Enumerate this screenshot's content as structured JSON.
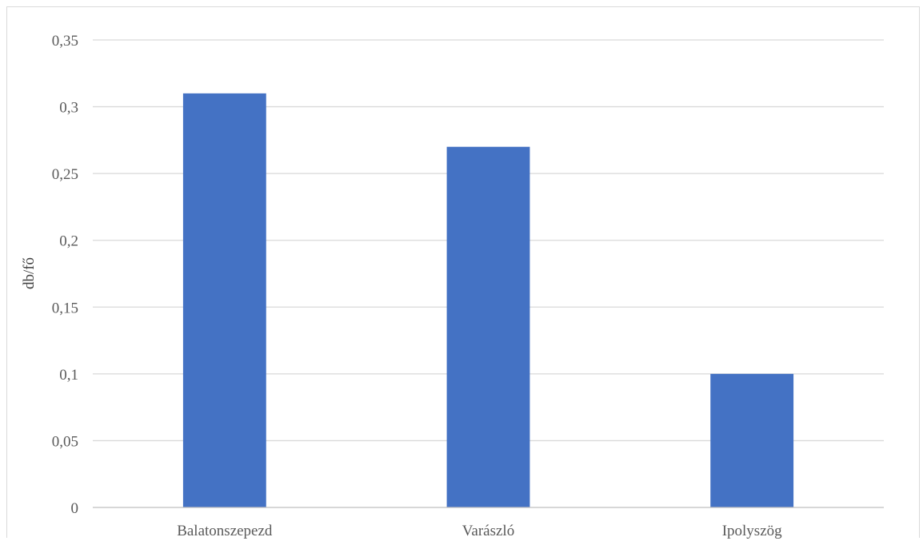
{
  "chart_data": {
    "type": "bar",
    "title": "",
    "xlabel": "",
    "ylabel": "db/fő",
    "categories": [
      "Balatonszepezd",
      "Varászló",
      "Ipolyszög"
    ],
    "values": [
      0.31,
      0.27,
      0.1
    ],
    "ylim": [
      0,
      0.35
    ],
    "yticks": [
      0,
      0.05,
      0.1,
      0.15,
      0.2,
      0.25,
      0.3,
      0.35
    ],
    "ytick_labels": [
      "0",
      "0,05",
      "0,1",
      "0,15",
      "0,2",
      "0,25",
      "0,3",
      "0,35"
    ],
    "grid": true,
    "legend": "none",
    "colors": {
      "bar": "#4472c4",
      "grid": "#d9d9d9",
      "axis": "#bfbfbf",
      "tick_text": "#595959"
    }
  }
}
